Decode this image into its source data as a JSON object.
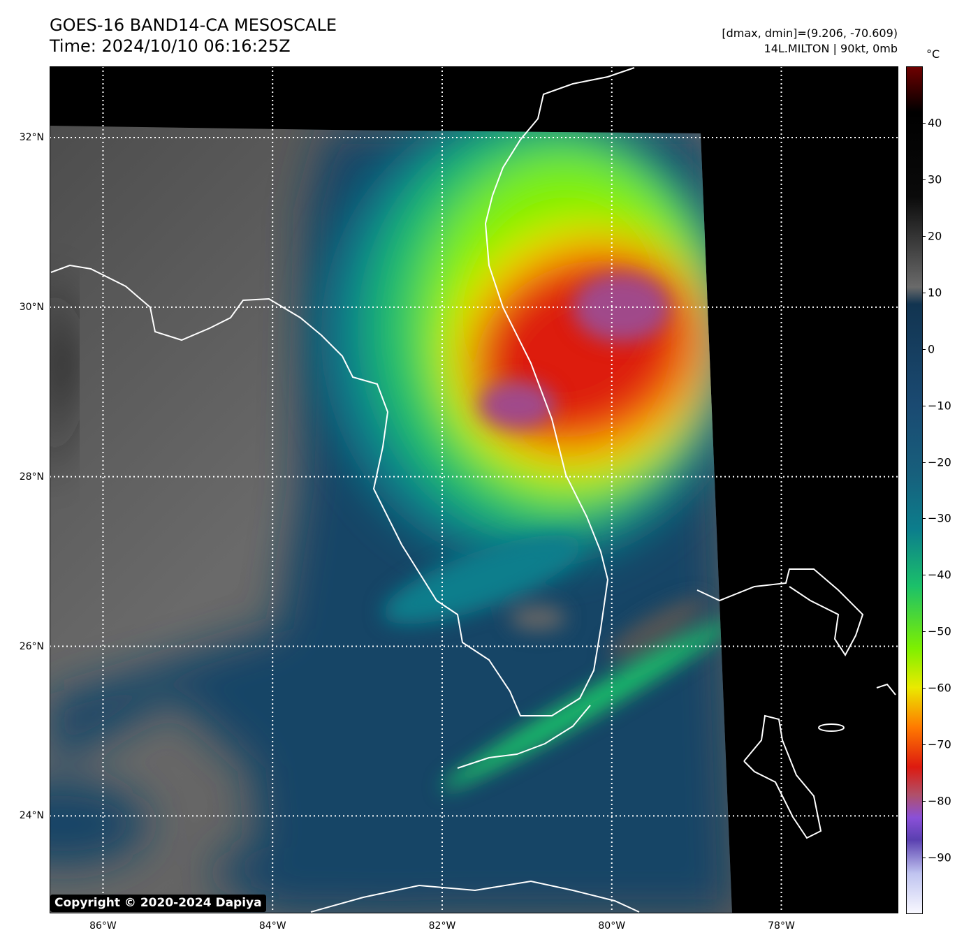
{
  "header": {
    "title": "GOES-16 BAND14-CA MESOSCALE",
    "time": "Time: 2024/10/10 06:16:25Z",
    "range_text": "[dmax, dmin]=(9.206, -70.609)",
    "storm_text": "14L.MILTON | 90kt, 0mb"
  },
  "map": {
    "lon_range": [
      -86.63,
      -76.62
    ],
    "lat_range": [
      22.85,
      32.84
    ],
    "lat_ticks": [
      {
        "value": 32,
        "label": "32°N"
      },
      {
        "value": 30,
        "label": "30°N"
      },
      {
        "value": 28,
        "label": "28°N"
      },
      {
        "value": 26,
        "label": "26°N"
      },
      {
        "value": 24,
        "label": "24°N"
      }
    ],
    "lon_ticks": [
      {
        "value": -86,
        "label": "86°W"
      },
      {
        "value": -84,
        "label": "84°W"
      },
      {
        "value": -82,
        "label": "82°W"
      },
      {
        "value": -80,
        "label": "80°W"
      },
      {
        "value": -78,
        "label": "78°W"
      }
    ],
    "copyright": "Copyright © 2020-2024 Dapiya"
  },
  "colorbar": {
    "unit": "°C",
    "range": [
      -100,
      50
    ],
    "ticks": [
      "40",
      "30",
      "20",
      "10",
      "0",
      "−10",
      "−20",
      "−30",
      "−40",
      "−50",
      "−60",
      "−70",
      "−80",
      "−90"
    ],
    "tick_values": [
      40,
      30,
      20,
      10,
      0,
      -10,
      -20,
      -30,
      -40,
      -50,
      -60,
      -70,
      -80,
      -90
    ],
    "stops": [
      {
        "v": 50,
        "c": "#6e0000"
      },
      {
        "v": 42,
        "c": "#000000"
      },
      {
        "v": 27,
        "c": "#0a0a0a"
      },
      {
        "v": 11,
        "c": "#6a6a6a"
      },
      {
        "v": 8,
        "c": "#123450"
      },
      {
        "v": -10,
        "c": "#1a4a72"
      },
      {
        "v": -22,
        "c": "#175f7c"
      },
      {
        "v": -32,
        "c": "#0c7e8c"
      },
      {
        "v": -42,
        "c": "#1bc06a"
      },
      {
        "v": -53,
        "c": "#7ef000"
      },
      {
        "v": -60,
        "c": "#eaea00"
      },
      {
        "v": -67,
        "c": "#ff7a00"
      },
      {
        "v": -74,
        "c": "#dd1a10"
      },
      {
        "v": -79,
        "c": "#b0506a"
      },
      {
        "v": -83,
        "c": "#8a50d8"
      },
      {
        "v": -87,
        "c": "#5a40b0"
      },
      {
        "v": -93,
        "c": "#c0c4f0"
      },
      {
        "v": -100,
        "c": "#f8f8ff"
      }
    ]
  }
}
